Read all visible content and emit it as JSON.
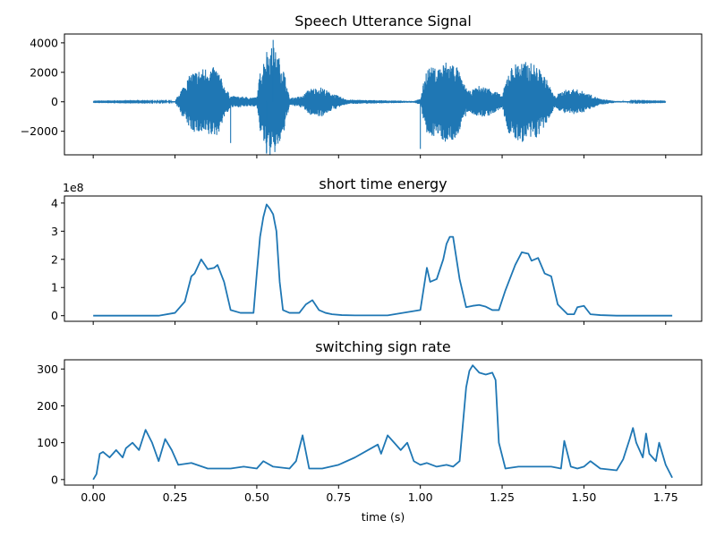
{
  "chart_data": [
    {
      "type": "line",
      "title": "Speech Utterance Signal",
      "xlabel": "",
      "ylabel": "",
      "xlim": [
        -0.088,
        1.86
      ],
      "ylim": [
        -3600,
        4600
      ],
      "yticks": [
        -2000,
        0,
        2000,
        4000
      ],
      "ytick_labels": [
        "−2000",
        "0",
        "2000",
        "4000"
      ],
      "series": [
        {
          "name": "",
          "amplitude_envelope": [
            [
              0.0,
              20
            ],
            [
              0.25,
              40
            ],
            [
              0.27,
              900
            ],
            [
              0.3,
              2000
            ],
            [
              0.35,
              2400
            ],
            [
              0.38,
              2300
            ],
            [
              0.4,
              1100
            ],
            [
              0.42,
              400
            ],
            [
              0.5,
              300
            ],
            [
              0.51,
              2000
            ],
            [
              0.53,
              3600
            ],
            [
              0.55,
              3800
            ],
            [
              0.58,
              2500
            ],
            [
              0.6,
              250
            ],
            [
              0.64,
              400
            ],
            [
              0.66,
              900
            ],
            [
              0.7,
              1000
            ],
            [
              0.72,
              700
            ],
            [
              0.76,
              300
            ],
            [
              0.78,
              150
            ],
            [
              0.98,
              60
            ],
            [
              1.0,
              200
            ],
            [
              1.02,
              2400
            ],
            [
              1.05,
              2300
            ],
            [
              1.08,
              2800
            ],
            [
              1.11,
              2600
            ],
            [
              1.13,
              1300
            ],
            [
              1.15,
              700
            ],
            [
              1.18,
              1100
            ],
            [
              1.22,
              900
            ],
            [
              1.25,
              400
            ],
            [
              1.27,
              2200
            ],
            [
              1.3,
              2800
            ],
            [
              1.35,
              2600
            ],
            [
              1.38,
              1800
            ],
            [
              1.41,
              400
            ],
            [
              1.44,
              800
            ],
            [
              1.47,
              900
            ],
            [
              1.5,
              700
            ],
            [
              1.55,
              200
            ],
            [
              1.6,
              50
            ],
            [
              1.75,
              20
            ]
          ],
          "spikes": [
            [
              1.0,
              -3200
            ],
            [
              0.55,
              4200
            ],
            [
              0.53,
              -3450
            ],
            [
              0.42,
              -2800
            ]
          ]
        }
      ]
    },
    {
      "type": "line",
      "title": "short time energy",
      "xlabel": "",
      "ylabel": "",
      "scale_label": "1e8",
      "xlim": [
        -0.088,
        1.86
      ],
      "ylim": [
        -20000000.0,
        425000000.0
      ],
      "yticks": [
        0,
        100000000,
        200000000,
        300000000,
        400000000
      ],
      "ytick_labels": [
        "0",
        "1",
        "2",
        "3",
        "4"
      ],
      "series": [
        {
          "name": "",
          "x": [
            0.0,
            0.2,
            0.25,
            0.28,
            0.3,
            0.31,
            0.33,
            0.35,
            0.37,
            0.38,
            0.4,
            0.42,
            0.45,
            0.49,
            0.5,
            0.51,
            0.52,
            0.53,
            0.54,
            0.55,
            0.56,
            0.57,
            0.58,
            0.6,
            0.63,
            0.65,
            0.67,
            0.69,
            0.71,
            0.73,
            0.76,
            0.8,
            0.9,
            1.0,
            1.02,
            1.03,
            1.05,
            1.07,
            1.08,
            1.09,
            1.1,
            1.12,
            1.14,
            1.16,
            1.18,
            1.2,
            1.22,
            1.24,
            1.26,
            1.29,
            1.31,
            1.33,
            1.34,
            1.36,
            1.38,
            1.4,
            1.42,
            1.45,
            1.47,
            1.48,
            1.5,
            1.52,
            1.55,
            1.6,
            1.77
          ],
          "y": [
            0,
            0,
            10000000,
            50000000,
            140000000,
            150000000,
            200000000,
            165000000,
            170000000,
            180000000,
            120000000,
            20000000,
            10000000,
            10000000,
            150000000,
            280000000,
            350000000,
            395000000,
            380000000,
            360000000,
            300000000,
            120000000,
            20000000,
            10000000,
            10000000,
            40000000,
            55000000,
            20000000,
            10000000,
            5000000,
            2000000,
            1000000,
            1000000,
            20000000,
            170000000,
            120000000,
            130000000,
            200000000,
            255000000,
            280000000,
            280000000,
            130000000,
            30000000,
            35000000,
            38000000,
            32000000,
            20000000,
            20000000,
            90000000,
            180000000,
            225000000,
            220000000,
            195000000,
            205000000,
            150000000,
            140000000,
            40000000,
            5000000,
            5000000,
            30000000,
            35000000,
            5000000,
            2000000,
            0,
            0
          ]
        }
      ]
    },
    {
      "type": "line",
      "title": "switching sign rate",
      "xlabel": "time (s)",
      "ylabel": "",
      "xlim": [
        -0.088,
        1.86
      ],
      "ylim": [
        -15,
        325
      ],
      "xticks": [
        0.0,
        0.25,
        0.5,
        0.75,
        1.0,
        1.25,
        1.5,
        1.75
      ],
      "xtick_labels": [
        "0.00",
        "0.25",
        "0.50",
        "0.75",
        "1.00",
        "1.25",
        "1.50",
        "1.75"
      ],
      "yticks": [
        0,
        100,
        200,
        300
      ],
      "ytick_labels": [
        "0",
        "100",
        "200",
        "300"
      ],
      "series": [
        {
          "name": "",
          "x": [
            0.0,
            0.01,
            0.02,
            0.03,
            0.05,
            0.07,
            0.09,
            0.1,
            0.12,
            0.14,
            0.16,
            0.18,
            0.2,
            0.22,
            0.24,
            0.26,
            0.3,
            0.35,
            0.38,
            0.42,
            0.46,
            0.5,
            0.52,
            0.55,
            0.6,
            0.62,
            0.64,
            0.66,
            0.7,
            0.75,
            0.8,
            0.85,
            0.87,
            0.88,
            0.9,
            0.92,
            0.94,
            0.96,
            0.98,
            1.0,
            1.02,
            1.05,
            1.08,
            1.1,
            1.12,
            1.14,
            1.15,
            1.16,
            1.18,
            1.2,
            1.22,
            1.23,
            1.24,
            1.26,
            1.3,
            1.35,
            1.4,
            1.43,
            1.44,
            1.46,
            1.48,
            1.5,
            1.52,
            1.55,
            1.6,
            1.62,
            1.64,
            1.65,
            1.66,
            1.68,
            1.69,
            1.7,
            1.72,
            1.73,
            1.75,
            1.77
          ],
          "y": [
            0,
            15,
            70,
            75,
            60,
            80,
            60,
            85,
            100,
            80,
            135,
            100,
            50,
            110,
            80,
            40,
            45,
            30,
            30,
            30,
            35,
            30,
            50,
            35,
            30,
            50,
            120,
            30,
            30,
            40,
            60,
            85,
            95,
            70,
            120,
            100,
            80,
            100,
            50,
            40,
            45,
            35,
            40,
            35,
            50,
            250,
            295,
            310,
            290,
            285,
            290,
            270,
            100,
            30,
            35,
            35,
            35,
            30,
            105,
            35,
            30,
            35,
            50,
            30,
            25,
            55,
            110,
            140,
            100,
            60,
            125,
            70,
            50,
            100,
            40,
            5
          ]
        }
      ]
    }
  ]
}
